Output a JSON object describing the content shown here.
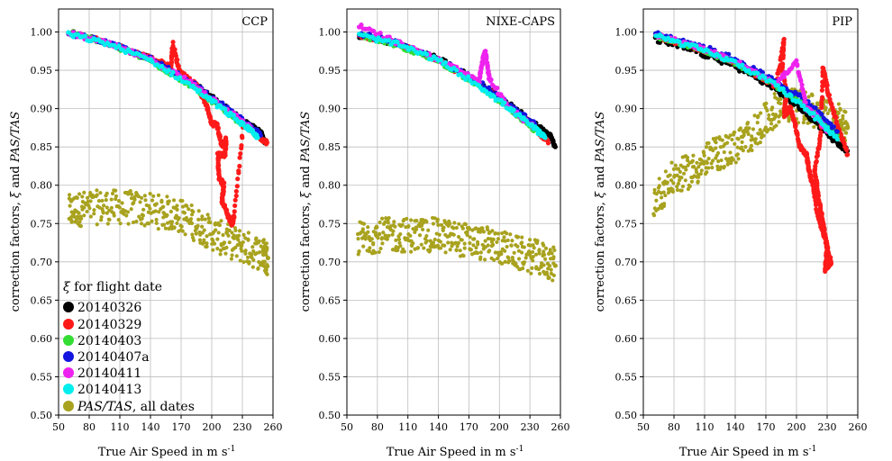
{
  "figure": {
    "x_axis_title": "True Air Speed in m s",
    "x_axis_title_sup": "-1",
    "y_axis_title_prefix": "correction factors, ",
    "y_axis_title_xi": "ξ",
    "y_axis_title_and": " and ",
    "y_axis_title_italic": "PAS/TAS"
  },
  "legend": {
    "header_symbol": "ξ",
    "header_text": " for flight date",
    "items": [
      {
        "label": "20140326",
        "color": "#000000"
      },
      {
        "label": "20140329",
        "color": "#ff1a1a"
      },
      {
        "label": "20140403",
        "color": "#33dd33"
      },
      {
        "label": "20140407a",
        "color": "#1515e0"
      },
      {
        "label": "20140411",
        "color": "#ee22ee"
      },
      {
        "label": "20140413",
        "color": "#00eeee"
      },
      {
        "label_italic": "PAS/TAS",
        "label_rest": ", all dates",
        "color": "#a8a21e"
      }
    ]
  },
  "chart_data": [
    {
      "type": "scatter",
      "panel_label": "CCP",
      "xlim": [
        50,
        260
      ],
      "ylim": [
        0.5,
        1.03
      ],
      "xticks": [
        50,
        80,
        110,
        140,
        170,
        200,
        230,
        260
      ],
      "yticks": [
        0.5,
        0.55,
        0.6,
        0.65,
        0.7,
        0.75,
        0.8,
        0.85,
        0.9,
        0.95,
        1.0
      ],
      "grid": true,
      "legend_position": "bottom-left",
      "series": [
        {
          "name": "20140326",
          "color": "#000000",
          "x": [
            60,
            100,
            140,
            180,
            210,
            235,
            248,
            252
          ],
          "y": [
            1.0,
            0.985,
            0.965,
            0.935,
            0.905,
            0.88,
            0.87,
            0.855
          ]
        },
        {
          "name": "20140329",
          "color": "#ff1a1a",
          "x": [
            60,
            100,
            140,
            160,
            162,
            168,
            180,
            185,
            195,
            200,
            205,
            210,
            214,
            213,
            206,
            207,
            212,
            210,
            216,
            220,
            222,
            231,
            240,
            250,
            254
          ],
          "y": [
            1.0,
            0.985,
            0.966,
            0.955,
            0.984,
            0.95,
            0.935,
            0.93,
            0.905,
            0.88,
            0.88,
            0.85,
            0.86,
            0.84,
            0.84,
            0.81,
            0.8,
            0.78,
            0.76,
            0.75,
            0.76,
            0.88,
            0.87,
            0.86,
            0.855
          ]
        },
        {
          "name": "20140403",
          "color": "#33dd33",
          "x": [
            60,
            100,
            140,
            180,
            210,
            235,
            245
          ],
          "y": [
            1.0,
            0.984,
            0.962,
            0.93,
            0.9,
            0.875,
            0.865
          ]
        },
        {
          "name": "20140407a",
          "color": "#1515e0",
          "x": [
            60,
            100,
            140,
            180,
            210,
            235,
            248
          ],
          "y": [
            0.999,
            0.985,
            0.965,
            0.935,
            0.905,
            0.88,
            0.865
          ]
        },
        {
          "name": "20140411",
          "color": "#ee22ee",
          "x": [
            60,
            100,
            140,
            180,
            210,
            235,
            240
          ],
          "y": [
            0.999,
            0.984,
            0.964,
            0.934,
            0.904,
            0.878,
            0.87
          ]
        },
        {
          "name": "20140413",
          "color": "#00eeee",
          "x": [
            60,
            100,
            140,
            180,
            210,
            235,
            245
          ],
          "y": [
            0.997,
            0.984,
            0.963,
            0.93,
            0.9,
            0.875,
            0.862
          ]
        },
        {
          "name": "PAS/TAS, all dates",
          "color": "#a8a21e",
          "x": [
            60,
            75,
            100,
            125,
            150,
            170,
            190,
            210,
            230,
            250,
            255
          ],
          "y": [
            0.765,
            0.77,
            0.772,
            0.77,
            0.765,
            0.76,
            0.745,
            0.73,
            0.72,
            0.71,
            0.705
          ]
        }
      ]
    },
    {
      "type": "scatter",
      "panel_label": "NIXE-CAPS",
      "xlim": [
        50,
        260
      ],
      "ylim": [
        0.5,
        1.03
      ],
      "xticks": [
        50,
        80,
        110,
        140,
        170,
        200,
        230,
        260
      ],
      "yticks": [
        0.5,
        0.55,
        0.6,
        0.65,
        0.7,
        0.75,
        0.8,
        0.85,
        0.9,
        0.95,
        1.0
      ],
      "grid": true,
      "series": [
        {
          "name": "20140326",
          "color": "#000000",
          "x": [
            62,
            100,
            140,
            180,
            210,
            235,
            250,
            255
          ],
          "y": [
            0.995,
            0.985,
            0.965,
            0.935,
            0.905,
            0.88,
            0.865,
            0.85
          ]
        },
        {
          "name": "20140329",
          "color": "#ff1a1a",
          "x": [
            62,
            100,
            140,
            180,
            210,
            235,
            248
          ],
          "y": [
            0.996,
            0.984,
            0.963,
            0.932,
            0.902,
            0.876,
            0.855
          ]
        },
        {
          "name": "20140403",
          "color": "#33dd33",
          "x": [
            62,
            100,
            140,
            180,
            210,
            235
          ],
          "y": [
            0.996,
            0.983,
            0.962,
            0.93,
            0.9,
            0.872
          ]
        },
        {
          "name": "20140407a",
          "color": "#1515e0",
          "x": [
            62,
            100,
            140,
            180,
            210,
            235
          ],
          "y": [
            0.998,
            0.986,
            0.965,
            0.935,
            0.905,
            0.88
          ]
        },
        {
          "name": "20140411",
          "color": "#ee22ee",
          "x": [
            62,
            100,
            140,
            180,
            183,
            186,
            190,
            210,
            235
          ],
          "y": [
            1.008,
            0.986,
            0.965,
            0.935,
            0.96,
            0.975,
            0.94,
            0.9,
            0.875
          ]
        },
        {
          "name": "20140413",
          "color": "#00eeee",
          "x": [
            62,
            100,
            140,
            180,
            210,
            235,
            245
          ],
          "y": [
            0.996,
            0.984,
            0.963,
            0.93,
            0.9,
            0.874,
            0.862
          ]
        },
        {
          "name": "PAS/TAS, all dates",
          "color": "#a8a21e",
          "x": [
            60,
            80,
            100,
            120,
            140,
            160,
            180,
            200,
            220,
            240,
            255
          ],
          "y": [
            0.73,
            0.735,
            0.735,
            0.735,
            0.735,
            0.73,
            0.725,
            0.72,
            0.71,
            0.705,
            0.695
          ]
        }
      ]
    },
    {
      "type": "scatter",
      "panel_label": "PIP",
      "xlim": [
        50,
        260
      ],
      "ylim": [
        0.5,
        1.03
      ],
      "xticks": [
        50,
        80,
        110,
        140,
        170,
        200,
        230,
        260
      ],
      "yticks": [
        0.5,
        0.55,
        0.6,
        0.65,
        0.7,
        0.75,
        0.8,
        0.85,
        0.9,
        0.95,
        1.0
      ],
      "grid": true,
      "series": [
        {
          "name": "20140326",
          "color": "#000000",
          "x": [
            62,
            100,
            140,
            180,
            200,
            220,
            240,
            250
          ],
          "y": [
            0.99,
            0.975,
            0.955,
            0.925,
            0.905,
            0.88,
            0.855,
            0.845
          ]
        },
        {
          "name": "20140329",
          "color": "#ff1a1a",
          "x": [
            62,
            100,
            140,
            180,
            188,
            186,
            190,
            188,
            194,
            198,
            203,
            210,
            212,
            216,
            221,
            226,
            230,
            234,
            228,
            230,
            226,
            222,
            218,
            224,
            226,
            231,
            240,
            250
          ],
          "y": [
            0.995,
            0.98,
            0.96,
            0.93,
            0.99,
            0.95,
            0.92,
            0.89,
            0.9,
            0.885,
            0.85,
            0.84,
            0.82,
            0.8,
            0.76,
            0.74,
            0.72,
            0.7,
            0.69,
            0.72,
            0.75,
            0.78,
            0.82,
            0.87,
            0.955,
            0.92,
            0.88,
            0.84
          ]
        },
        {
          "name": "20140403",
          "color": "#33dd33",
          "x": [
            62,
            100,
            140,
            180,
            210,
            240
          ],
          "y": [
            0.995,
            0.98,
            0.96,
            0.93,
            0.905,
            0.865
          ]
        },
        {
          "name": "20140407a",
          "color": "#1515e0",
          "x": [
            62,
            100,
            140,
            180,
            210,
            240
          ],
          "y": [
            0.998,
            0.985,
            0.965,
            0.935,
            0.91,
            0.87
          ]
        },
        {
          "name": "20140411",
          "color": "#ee22ee",
          "x": [
            62,
            100,
            140,
            180,
            200,
            210,
            220,
            230
          ],
          "y": [
            0.996,
            0.982,
            0.962,
            0.932,
            0.96,
            0.9,
            0.89,
            0.87
          ]
        },
        {
          "name": "20140413",
          "color": "#00eeee",
          "x": [
            62,
            100,
            140,
            180,
            210,
            240
          ],
          "y": [
            0.995,
            0.98,
            0.96,
            0.93,
            0.9,
            0.86
          ]
        },
        {
          "name": "PAS/TAS, all dates",
          "color": "#a8a21e",
          "x": [
            60,
            80,
            100,
            120,
            140,
            160,
            180,
            200,
            220,
            240,
            250
          ],
          "y": [
            0.78,
            0.81,
            0.82,
            0.84,
            0.85,
            0.87,
            0.9,
            0.905,
            0.895,
            0.885,
            0.875
          ]
        }
      ]
    }
  ]
}
